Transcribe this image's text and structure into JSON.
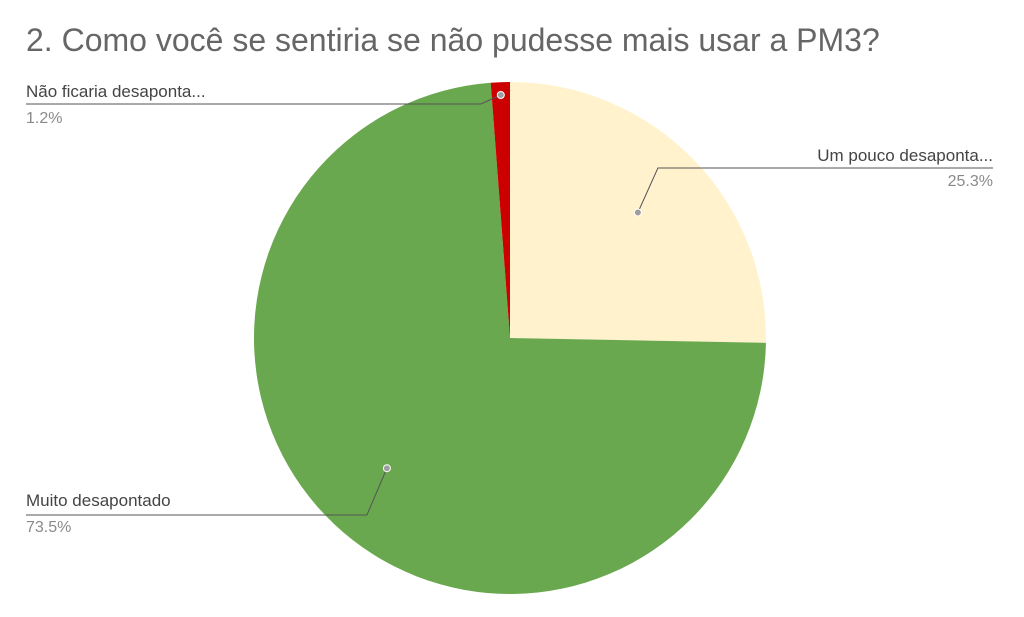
{
  "chart_data": {
    "type": "pie",
    "title": "2. Como você se sentiria se não pudesse mais usar a PM3?",
    "slices": [
      {
        "label": "Um pouco desaponta...",
        "value": 25.3,
        "value_label": "25.3%",
        "color": "#fff2cc"
      },
      {
        "label": "Muito desapontado",
        "value": 73.5,
        "value_label": "73.5%",
        "color": "#6aa84f"
      },
      {
        "label": "Não ficaria desaponta...",
        "value": 1.2,
        "value_label": "1.2%",
        "color": "#cc0000"
      }
    ],
    "start_angle": "12 o'clock",
    "direction": "clockwise",
    "legend": "none",
    "label_style": "leader-lines"
  }
}
